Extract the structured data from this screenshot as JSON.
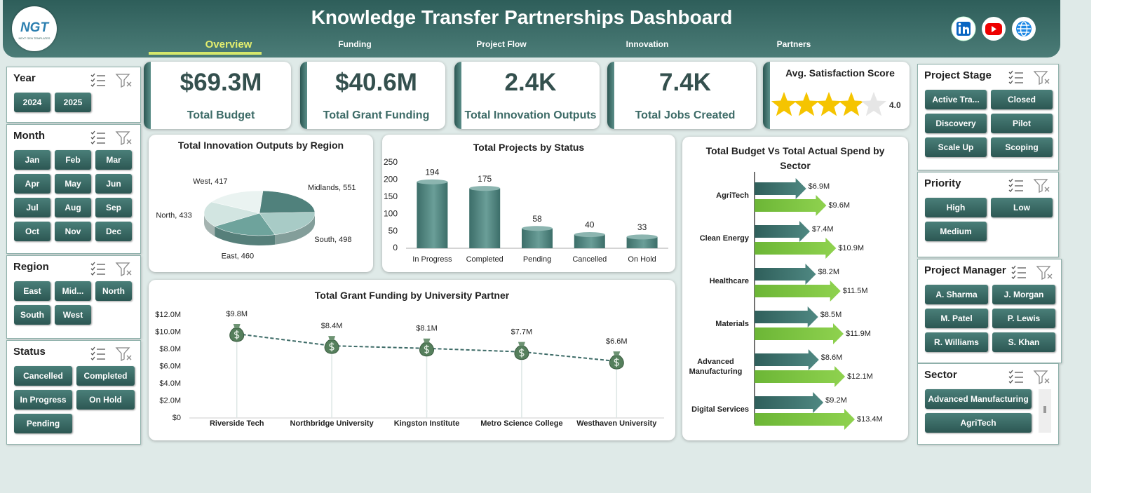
{
  "header": {
    "logo": "NGT",
    "logo_sub": "NEXT GEN TEMPLATES",
    "title": "Knowledge Transfer Partnerships Dashboard"
  },
  "nav": [
    "Overview",
    "Funding",
    "Project Flow",
    "Innovation",
    "Partners"
  ],
  "slicers": [
    {
      "title": "Year",
      "items": [
        "2024",
        "2025"
      ]
    },
    {
      "title": "Month",
      "items": [
        "Jan",
        "Feb",
        "Mar",
        "Apr",
        "May",
        "Jun",
        "Jul",
        "Aug",
        "Sep",
        "Oct",
        "Nov",
        "Dec"
      ]
    },
    {
      "title": "Region",
      "items": [
        "East",
        "Mid...",
        "North",
        "South",
        "West"
      ]
    },
    {
      "title": "Status",
      "items": [
        "Cancelled",
        "Completed",
        "In Progress",
        "On Hold",
        "Pending"
      ]
    },
    {
      "title": "Project Stage",
      "items": [
        "Active Tra...",
        "Closed",
        "Discovery",
        "Pilot",
        "Scale Up",
        "Scoping"
      ]
    },
    {
      "title": "Priority",
      "items": [
        "High",
        "Low",
        "Medium"
      ]
    },
    {
      "title": "Project Manager",
      "items": [
        "A. Sharma",
        "J. Morgan",
        "M. Patel",
        "P. Lewis",
        "R. Williams",
        "S. Khan"
      ]
    },
    {
      "title": "Sector",
      "items": [
        "Advanced Manufacturing",
        "AgriTech"
      ]
    }
  ],
  "kpis": [
    {
      "value": "$69.3M",
      "label": "Total Budget"
    },
    {
      "value": "$40.6M",
      "label": "Total Grant Funding"
    },
    {
      "value": "2.4K",
      "label": "Total Innovation Outputs"
    },
    {
      "value": "7.4K",
      "label": "Total Jobs Created"
    }
  ],
  "satisfaction": {
    "label": "Avg. Satisfaction Score",
    "rating": {
      "value": 4,
      "label": "4.0"
    },
    "rating_lim": [
      0,
      5
    ],
    "color": "#f5c400"
  },
  "chart_data": [
    {
      "type": "pie",
      "title": "Total Innovation Outputs by Region",
      "values": [
        417,
        551,
        498,
        460,
        433
      ],
      "value_labels": [
        "West, 417",
        "Midlands, 551",
        "South, 498",
        "East, 460",
        "North, 433"
      ],
      "colors": [
        "#eaf3f1",
        "#50817c",
        "#a8cbc6",
        "#6ea39c",
        "#d2e5e1"
      ]
    },
    {
      "type": "bar",
      "title": "Total Projects by Status",
      "categories": [
        "In Progress",
        "Completed",
        "Pending",
        "Cancelled",
        "On Hold"
      ],
      "values": [
        194,
        175,
        58,
        40,
        33
      ],
      "color": "#3c6e69",
      "ylim": [
        0,
        250
      ],
      "yticks": [
        0,
        50,
        100,
        150,
        200,
        250
      ]
    },
    {
      "type": "line",
      "title": "Total Grant Funding by University Partner",
      "categories": [
        "Riverside Tech",
        "Northbridge University",
        "Kingston Institute",
        "Metro Science College",
        "Westhaven University"
      ],
      "values": [
        9800000,
        8400000,
        8100000,
        7700000,
        6600000
      ],
      "value_labels": [
        "$9.8M",
        "$8.4M",
        "$8.1M",
        "$7.7M",
        "$6.6M"
      ],
      "color": "#3d6b67",
      "ylim": [
        0,
        12000000
      ],
      "yticks": [
        {
          "value": 0,
          "label": "$0"
        },
        {
          "value": 2000000,
          "label": "$2.0M"
        },
        {
          "value": 4000000,
          "label": "$4.0M"
        },
        {
          "value": 6000000,
          "label": "$6.0M"
        },
        {
          "value": 8000000,
          "label": "$8.0M"
        },
        {
          "value": 10000000,
          "label": "$10.0M"
        },
        {
          "value": 12000000,
          "label": "$12.0M"
        }
      ]
    },
    {
      "type": "bar",
      "orientation": "horizontal",
      "title": "Total Budget Vs Total Actual Spend by Sector",
      "categories": [
        "AgriTech",
        "Clean Energy",
        "Healthcare",
        "Materials",
        "Advanced Manufacturing",
        "Digital Services"
      ],
      "series": [
        {
          "color": "#2f5f5b",
          "values": [
            6900000,
            7400000,
            8200000,
            8500000,
            8600000,
            9200000
          ],
          "value_labels": [
            "$6.9M",
            "$7.4M",
            "$8.2M",
            "$8.5M",
            "$8.6M",
            "$9.2M"
          ]
        },
        {
          "color": "#6cb636",
          "values": [
            9600000,
            10900000,
            11500000,
            11900000,
            12100000,
            13400000
          ],
          "value_labels": [
            "$9.6M",
            "$10.9M",
            "$11.5M",
            "$11.9M",
            "$12.1M",
            "$13.4M"
          ]
        }
      ]
    }
  ]
}
